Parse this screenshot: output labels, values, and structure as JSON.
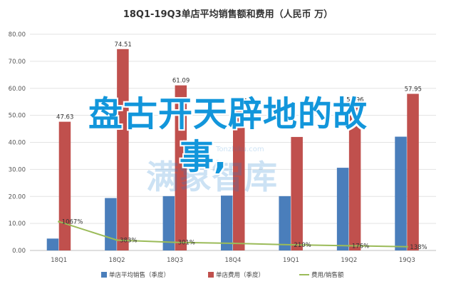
{
  "chart_data": {
    "type": "bar",
    "title": "18Q1-19Q3单店平均销售额和费用（人民币 万）",
    "categories": [
      "18Q1",
      "18Q2",
      "18Q3",
      "18Q4",
      "19Q1",
      "19Q2",
      "19Q3"
    ],
    "ylim": [
      0,
      80
    ],
    "yticks": [
      "0.00",
      "10.00",
      "20.00",
      "30.00",
      "40.00",
      "50.00",
      "60.00",
      "70.00",
      "80.00"
    ],
    "series": [
      {
        "name": "单店平均销售（季度）",
        "kind": "bar",
        "color": "#4a7ebb",
        "values": [
          4.4,
          19.4,
          20.1,
          20.3,
          20.1,
          30.6,
          42.1
        ]
      },
      {
        "name": "单店费用（季度）",
        "kind": "bar",
        "color": "#c0504d",
        "values": [
          47.63,
          74.51,
          61.09,
          53.51,
          42.0,
          53.96,
          57.95
        ],
        "labels": [
          "47.63",
          "74.51",
          "61.09",
          "53.51",
          "",
          "53.96",
          "57.95"
        ]
      },
      {
        "name": "费用/销售额",
        "kind": "line",
        "color": "#9bbb59",
        "values": [
          10.67,
          3.83,
          3.01,
          2.63,
          2.1,
          1.76,
          1.38
        ],
        "labels": [
          "1067%",
          "383%",
          "301%",
          "",
          "210%",
          "176%",
          "138%"
        ]
      }
    ],
    "legend": "bottom"
  },
  "overlay": {
    "line1": "盘古开天辟地的故",
    "line2": "事,"
  },
  "watermark": {
    "main": "满象智库",
    "sub": "Tonzhiku.com"
  }
}
